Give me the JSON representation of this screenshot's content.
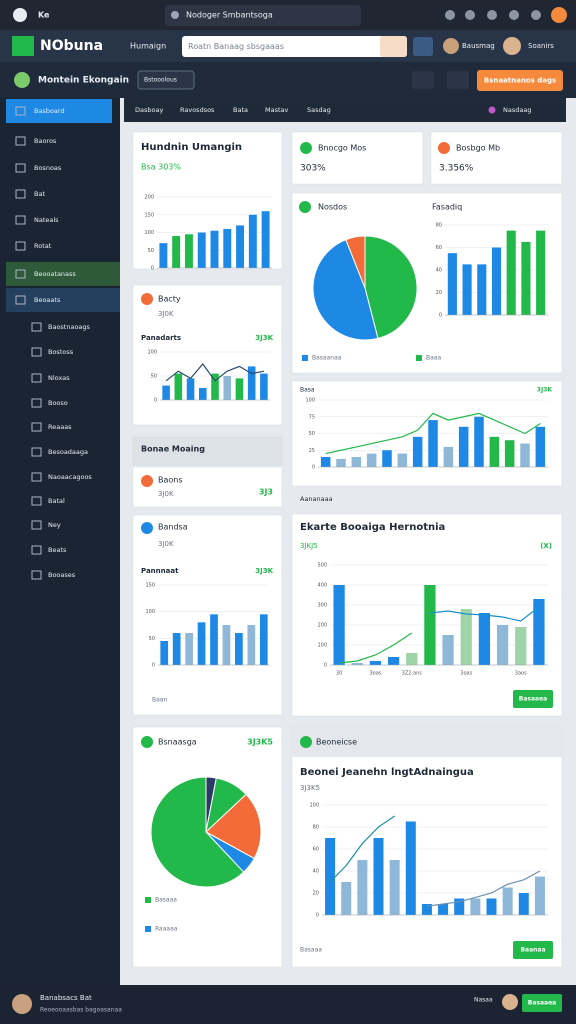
{
  "browser": {
    "tabs": [
      "Ke",
      "Nodoger Smbantsoga"
    ]
  },
  "header": {
    "logo": "NObuna",
    "menu": "Humaign",
    "search": "Roatn Banaag sbsgaaas",
    "user1": "Bausmag",
    "user2": "Soanirs"
  },
  "toolbar": {
    "title": "Montein Ekongain",
    "dropdown": "Bstooolous",
    "button": "Bsnaatnanos dags"
  },
  "sidebar": [
    "Basboard",
    "Baoros",
    "Bosnoas",
    "Bat",
    "Nateals",
    "Rotat",
    "Beooatanass",
    "Beoaats",
    "Baostnaoags",
    "Bostoss",
    "Nloxas",
    "Booso",
    "Reaaas",
    "Besoadaaga",
    "Naoaacagoos",
    "Batal",
    "Ney",
    "Beats",
    "Booases"
  ],
  "tabs": [
    "Dasboay",
    "Ravosdsos",
    "Bata",
    "Mastav",
    "Sasdag"
  ],
  "tabs_right": "Nasdaag",
  "section_label": "Aananaaa",
  "cards": [
    {
      "title": "Hundnin Umangin",
      "subtitle": "Bsa 303%",
      "charts": [
        {
          "type": "bar",
          "ylim": [
            0,
            200
          ],
          "yticks": [
            0,
            50,
            100,
            150,
            200
          ],
          "values": [
            70,
            90,
            95,
            100,
            105,
            110,
            120,
            150,
            160
          ],
          "colors": [
            "#1e88e5",
            "#22b84a",
            "#22b84a",
            "#1e88e5",
            "#1e88e5",
            "#1e88e5",
            "#1e88e5",
            "#1e88e5",
            "#1e88e5"
          ]
        }
      ]
    },
    {
      "title": "Bacty",
      "subtitle": "3J0K",
      "chart_title": "Panadarts",
      "chart_value": "3J3K",
      "charts": [
        {
          "type": "bar",
          "ylim": [
            0,
            100
          ],
          "yticks": [
            0,
            50,
            100
          ],
          "values": [
            30,
            55,
            45,
            25,
            55,
            50,
            45,
            70,
            55
          ],
          "colors": [
            "#1e88e5",
            "#22b84a",
            "#1e88e5",
            "#1e88e5",
            "#22b84a",
            "#8fb8d8",
            "#22b84a",
            "#1e88e5",
            "#1e88e5"
          ],
          "lines": [
            {
              "color": "#2a4a6a",
              "values": [
                40,
                60,
                45,
                75,
                40,
                60,
                70,
                55,
                60
              ]
            }
          ]
        }
      ]
    },
    {
      "title": "Bonae Moaing"
    },
    {
      "title": "Baons",
      "subtitle": "3J0K",
      "value": "3J3"
    },
    {
      "title": "Bandsa",
      "subtitle": "3J0K",
      "chart_title": "Pannnaat",
      "chart_value": "3J3K",
      "footer": "Baan",
      "charts": [
        {
          "type": "bar",
          "ylim": [
            0,
            150
          ],
          "yticks": [
            0,
            50,
            100,
            150
          ],
          "values": [
            45,
            60,
            60,
            80,
            95,
            75,
            60,
            75,
            95
          ],
          "colors": [
            "#1e88e5",
            "#1e88e5",
            "#8fb8d8",
            "#1e88e5",
            "#1e88e5",
            "#8fb8d8",
            "#1e88e5",
            "#8fb8d8",
            "#1e88e5"
          ]
        }
      ]
    },
    {
      "title": "Bsnaasga",
      "value": "3J3K5",
      "charts": [
        {
          "type": "pie",
          "values": [
            3,
            10,
            20,
            5,
            62
          ],
          "colors": [
            "#2b3a67",
            "#22b84a",
            "#f26b38",
            "#1e88e5",
            "#22b84a"
          ]
        }
      ],
      "legend": [
        {
          "name": "Basaaa",
          "color": "#22b84a"
        },
        {
          "name": "Raaaaa",
          "color": "#1e88e5"
        }
      ]
    },
    {
      "title": "Bnocgo Mos",
      "value": "303%"
    },
    {
      "title": "Bosbgo Mb",
      "value": "3.356%"
    },
    {
      "title": "Nosdos",
      "chart_title": "Fasadiq",
      "charts": [
        {
          "type": "pie",
          "values": [
            46,
            48,
            6
          ],
          "colors": [
            "#22b84a",
            "#1e88e5",
            "#f26b38"
          ]
        },
        {
          "type": "bar",
          "ylim": [
            0,
            80
          ],
          "yticks": [
            0,
            20,
            40,
            60,
            80
          ],
          "values": [
            55,
            45,
            45,
            60,
            75,
            65,
            75
          ],
          "colors": [
            "#1e88e5",
            "#1e88e5",
            "#1e88e5",
            "#1e88e5",
            "#22b84a",
            "#22b84a",
            "#22b84a"
          ]
        }
      ],
      "legend": [
        {
          "name": "Basaanaa",
          "color": "#1e88e5"
        },
        {
          "name": "Baaa",
          "color": "#22b84a"
        }
      ]
    },
    {
      "title": "Basa",
      "value": "3J3K",
      "charts": [
        {
          "type": "bar",
          "ylim": [
            0,
            100
          ],
          "yticks": [
            0,
            25,
            50,
            75,
            100
          ],
          "values": [
            15,
            12,
            15,
            20,
            25,
            20,
            45,
            70,
            30,
            60,
            75,
            45,
            40,
            35,
            60
          ],
          "colors": [
            "#1e88e5",
            "#8fb8d8",
            "#8fb8d8",
            "#8fb8d8",
            "#1e88e5",
            "#8fb8d8",
            "#1e88e5",
            "#1e88e5",
            "#8fb8d8",
            "#1e88e5",
            "#1e88e5",
            "#22b84a",
            "#22b84a",
            "#8fb8d8",
            "#1e88e5"
          ],
          "lines": [
            {
              "color": "#22b84a",
              "values": [
                20,
                25,
                30,
                35,
                40,
                45,
                55,
                80,
                70,
                75,
                80,
                70,
                60,
                50,
                65
              ]
            }
          ]
        }
      ]
    },
    {
      "title": "Ekarte Booaiga Hernotnia",
      "subtitle": "3JKJ5",
      "value": "(X)",
      "button": "Basaaea",
      "charts": [
        {
          "type": "bar",
          "ylim": [
            0,
            500
          ],
          "yticks": [
            0,
            100,
            200,
            300,
            400,
            500
          ],
          "values": [
            400,
            10,
            20,
            40,
            60,
            400,
            150,
            280,
            260,
            200,
            190,
            330
          ],
          "colors": [
            "#1e88e5",
            "#8fb8d8",
            "#1e88e5",
            "#1e88e5",
            "#9fd4a8",
            "#22b84a",
            "#8fb8d8",
            "#9fd4a8",
            "#1e88e5",
            "#8fb8d8",
            "#9fd4a8",
            "#1e88e5"
          ],
          "categories": [
            "30",
            null,
            "3oas",
            null,
            "3Z2 ans",
            null,
            null,
            "3oas",
            null,
            null,
            "3aos",
            null
          ],
          "lines": [
            {
              "color": "#22b84a",
              "values": [
                10,
                20,
                50,
                100,
                160,
                null,
                null,
                null,
                null,
                null,
                null,
                null
              ]
            },
            {
              "color": "#1a8fcf",
              "values": [
                null,
                null,
                null,
                null,
                null,
                260,
                270,
                255,
                250,
                240,
                220,
                290
              ]
            }
          ]
        }
      ]
    },
    {
      "title": "Beoneicse",
      "subtitle": "Beonei Jeanehn lngtAdnaingua",
      "subtitle2": "3J3K5",
      "footer": "Basaaa",
      "button": "Baanaa",
      "charts": [
        {
          "type": "bar",
          "ylim": [
            0,
            100
          ],
          "yticks": [
            0,
            20,
            40,
            60,
            80,
            100
          ],
          "values": [
            70,
            30,
            50,
            70,
            50,
            85,
            10,
            10,
            15,
            15,
            15,
            25,
            20,
            35
          ],
          "colors": [
            "#1e88e5",
            "#8fb8d8",
            "#8fb8d8",
            "#1e88e5",
            "#8fb8d8",
            "#1e88e5",
            "#1e88e5",
            "#1e88e5",
            "#1e88e5",
            "#8fb8d8",
            "#1e88e5",
            "#8fb8d8",
            "#1e88e5",
            "#8fb8d8"
          ],
          "lines": [
            {
              "color": "#1a8f9f",
              "values": [
                30,
                45,
                65,
                80,
                90,
                null,
                null,
                null,
                null,
                null,
                null,
                null,
                null,
                null
              ]
            },
            {
              "color": "#6f8fb0",
              "values": [
                null,
                null,
                null,
                null,
                null,
                null,
                8,
                10,
                12,
                16,
                20,
                28,
                32,
                40
              ]
            }
          ]
        }
      ]
    }
  ],
  "footer": {
    "name": "Banabsacs Bat",
    "sub": "Reoeooaasbas bagoasanaa",
    "right": "Nasaa",
    "button": "Basaaea"
  }
}
